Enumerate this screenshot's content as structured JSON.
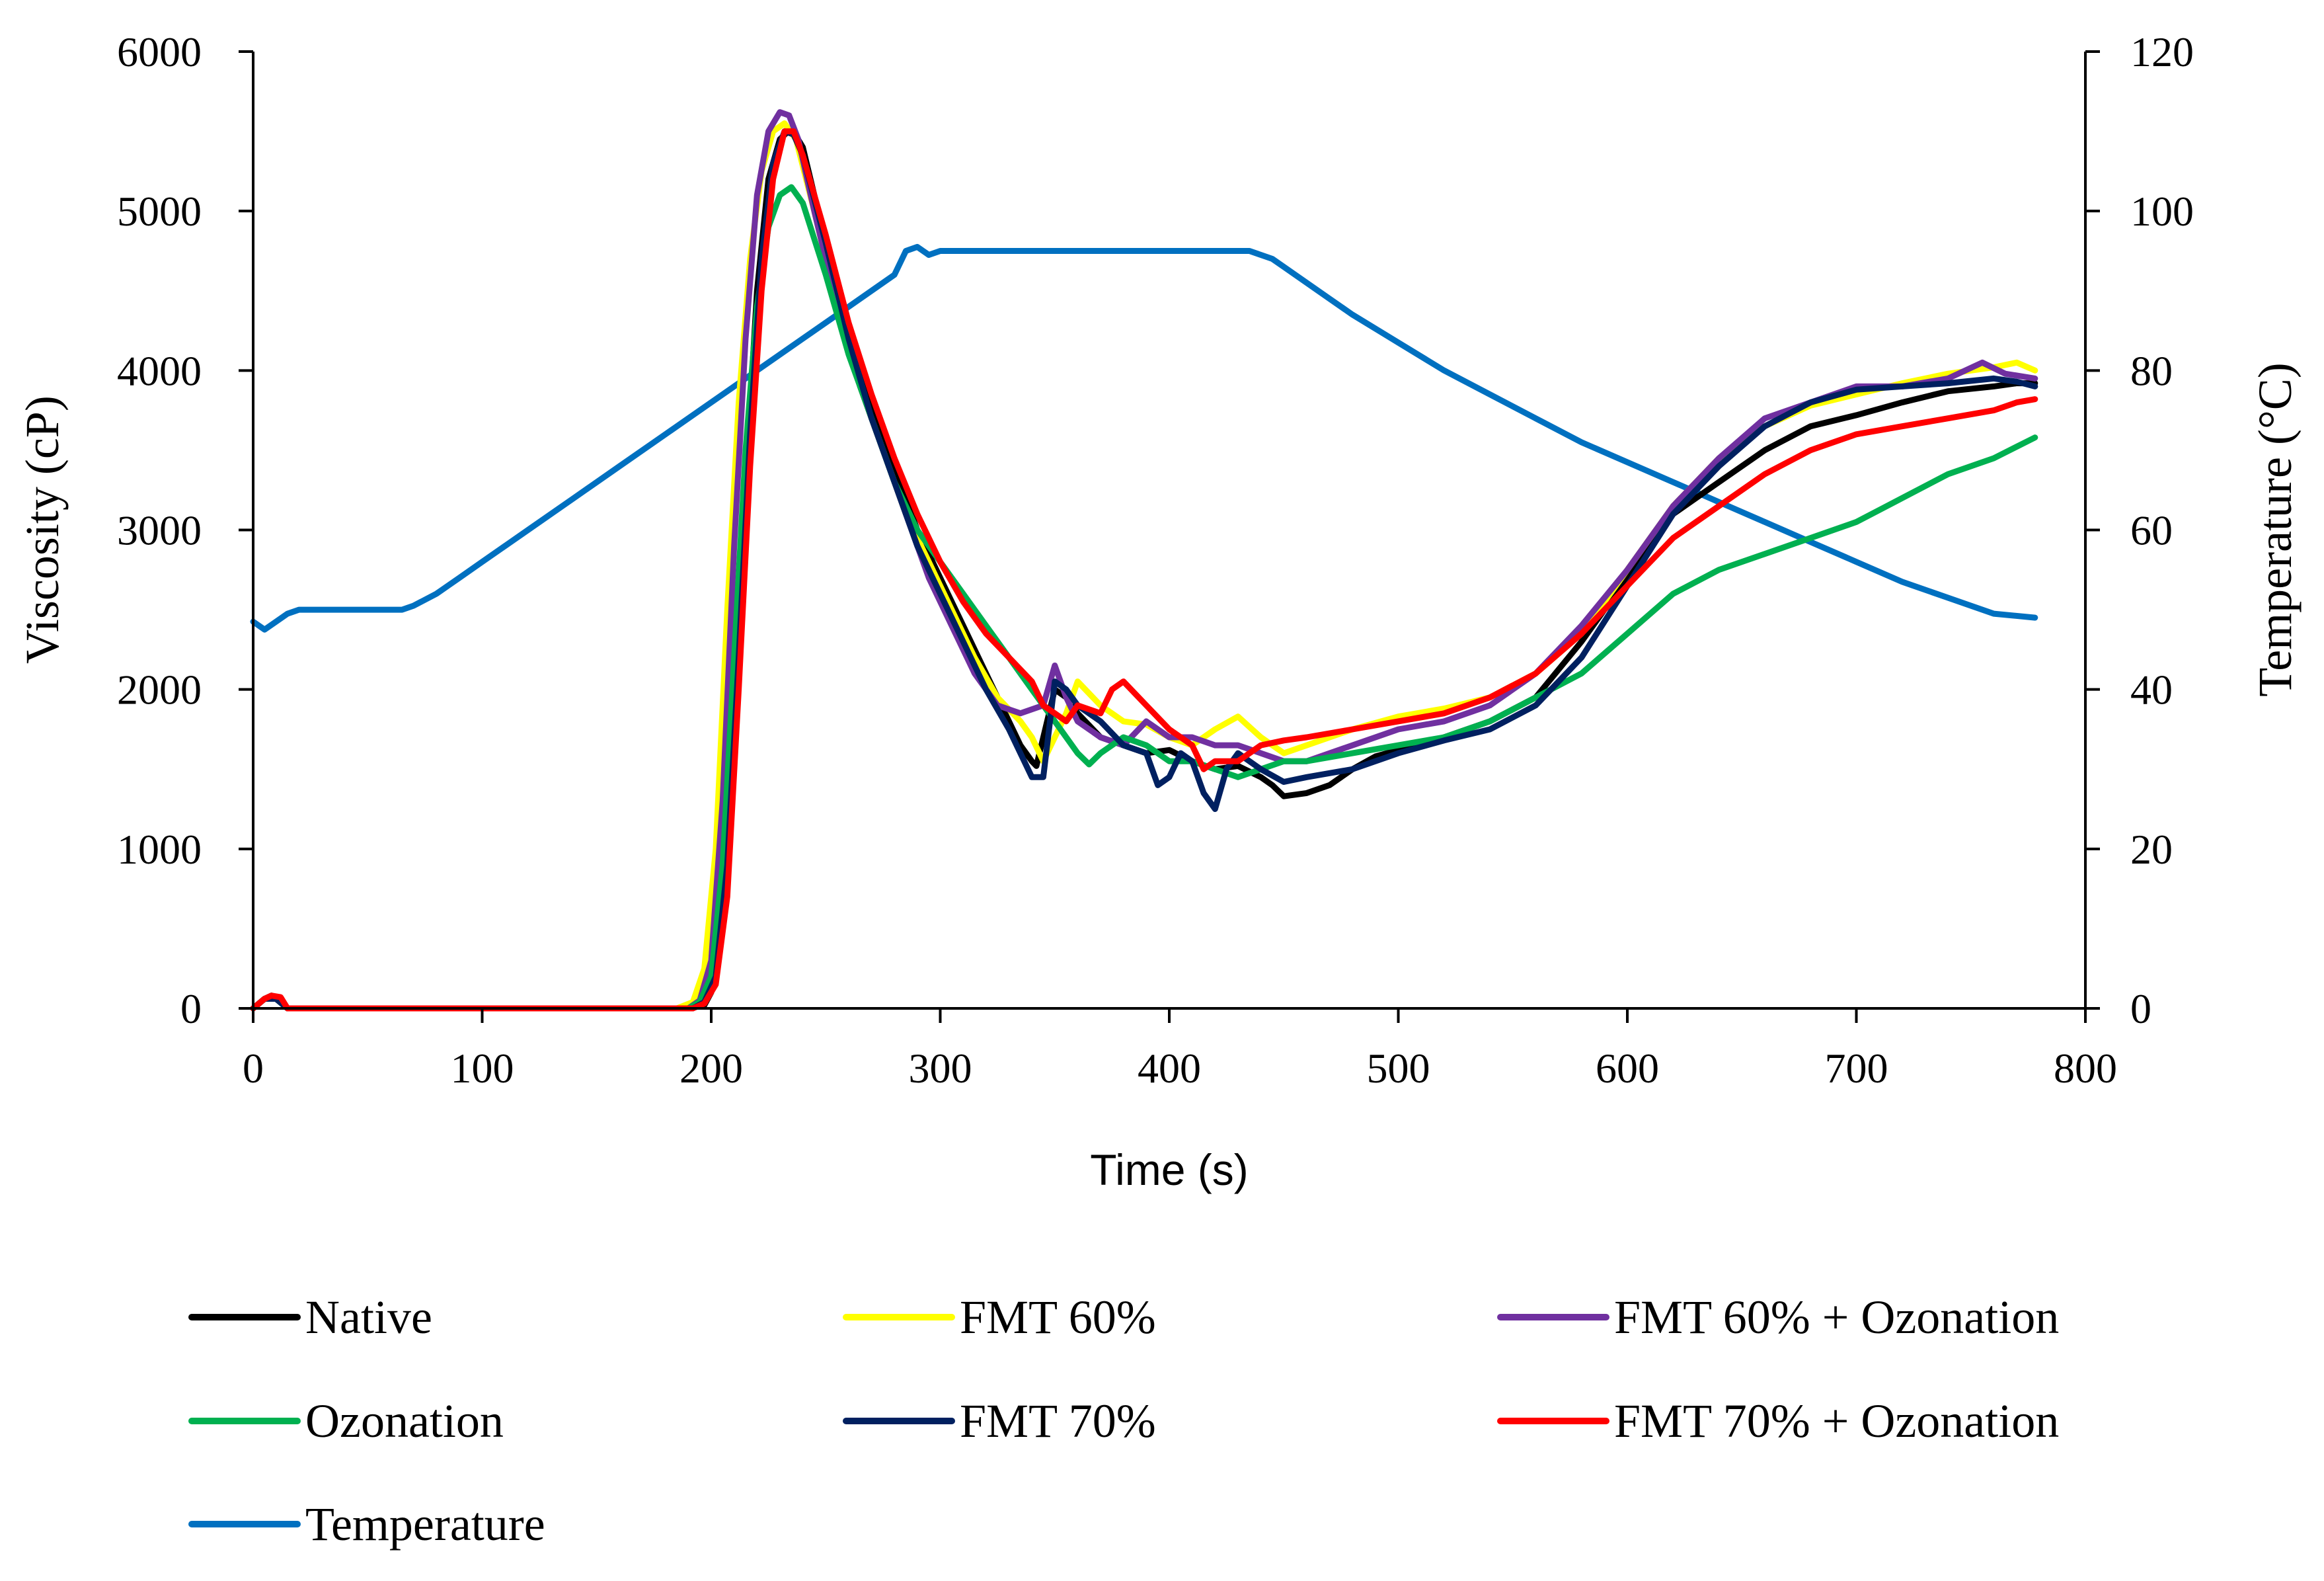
{
  "chart_data": {
    "type": "line",
    "title": "",
    "xlabel": "Time (s)",
    "ylabel": "Viscosity (cP)",
    "y2label": "Temperature (°C)",
    "xlim": [
      0,
      800
    ],
    "ylim": [
      0,
      6000
    ],
    "y2lim": [
      0,
      120
    ],
    "xticks": [
      0,
      100,
      200,
      300,
      400,
      500,
      600,
      700,
      800
    ],
    "yticks": [
      0,
      1000,
      2000,
      3000,
      4000,
      5000,
      6000
    ],
    "y2ticks": [
      0,
      20,
      40,
      60,
      80,
      100,
      120
    ],
    "grid": false,
    "legend_position": "bottom",
    "series": [
      {
        "name": "Native",
        "color": "#000000",
        "axis": "left",
        "x": [
          0,
          5,
          8,
          12,
          15,
          50,
          100,
          150,
          190,
          197,
          200,
          205,
          210,
          215,
          220,
          225,
          230,
          235,
          240,
          250,
          260,
          270,
          280,
          290,
          300,
          310,
          320,
          330,
          335,
          340,
          342,
          345,
          350,
          355,
          360,
          370,
          380,
          390,
          400,
          410,
          420,
          430,
          440,
          445,
          450,
          460,
          470,
          480,
          490,
          500,
          520,
          540,
          560,
          580,
          600,
          620,
          640,
          660,
          680,
          700,
          720,
          740,
          760,
          770,
          778
        ],
        "y": [
          0,
          60,
          80,
          50,
          0,
          0,
          0,
          0,
          0,
          20,
          100,
          700,
          2000,
          3300,
          4500,
          5200,
          5450,
          5520,
          5400,
          4800,
          4200,
          3800,
          3400,
          3000,
          2700,
          2400,
          2100,
          1800,
          1650,
          1550,
          1520,
          1700,
          2000,
          1950,
          1850,
          1700,
          1650,
          1600,
          1620,
          1550,
          1500,
          1520,
          1450,
          1400,
          1330,
          1350,
          1400,
          1500,
          1580,
          1620,
          1700,
          1800,
          1950,
          2300,
          2700,
          3100,
          3300,
          3500,
          3650,
          3720,
          3800,
          3870,
          3900,
          3920,
          3920
        ]
      },
      {
        "name": "FMT 60%",
        "color": "#ffff00",
        "axis": "left",
        "x": [
          0,
          5,
          10,
          15,
          50,
          100,
          150,
          185,
          192,
          197,
          202,
          207,
          212,
          217,
          222,
          227,
          232,
          237,
          245,
          255,
          265,
          275,
          285,
          295,
          305,
          315,
          325,
          335,
          340,
          345,
          350,
          355,
          360,
          370,
          380,
          390,
          400,
          410,
          420,
          430,
          440,
          450,
          460,
          480,
          500,
          520,
          540,
          560,
          580,
          600,
          620,
          640,
          660,
          680,
          700,
          720,
          740,
          760,
          770,
          778
        ],
        "y": [
          0,
          60,
          60,
          0,
          0,
          0,
          0,
          0,
          40,
          250,
          1000,
          2500,
          3800,
          4700,
          5250,
          5500,
          5550,
          5450,
          5000,
          4400,
          3900,
          3500,
          3100,
          2800,
          2500,
          2200,
          1950,
          1800,
          1700,
          1550,
          1700,
          1850,
          2050,
          1900,
          1800,
          1780,
          1700,
          1650,
          1750,
          1830,
          1700,
          1600,
          1650,
          1750,
          1830,
          1880,
          1950,
          2100,
          2350,
          2750,
          3150,
          3450,
          3650,
          3780,
          3850,
          3920,
          3980,
          4020,
          4050,
          4000
        ]
      },
      {
        "name": "FMT 60% + Ozonation",
        "color": "#7030a0",
        "axis": "left",
        "x": [
          0,
          5,
          10,
          15,
          50,
          100,
          150,
          190,
          195,
          200,
          205,
          210,
          215,
          220,
          225,
          230,
          234,
          238,
          245,
          255,
          265,
          275,
          285,
          295,
          305,
          315,
          325,
          335,
          345,
          350,
          355,
          360,
          370,
          380,
          390,
          400,
          410,
          420,
          430,
          440,
          450,
          460,
          480,
          500,
          520,
          540,
          560,
          580,
          600,
          620,
          640,
          660,
          680,
          700,
          720,
          740,
          755,
          765,
          778
        ],
        "y": [
          0,
          60,
          60,
          0,
          0,
          0,
          0,
          0,
          50,
          300,
          1300,
          2900,
          4200,
          5100,
          5500,
          5620,
          5600,
          5450,
          5000,
          4400,
          3900,
          3500,
          3100,
          2700,
          2400,
          2100,
          1900,
          1850,
          1900,
          2150,
          1950,
          1800,
          1700,
          1650,
          1800,
          1700,
          1700,
          1650,
          1650,
          1600,
          1550,
          1550,
          1650,
          1750,
          1800,
          1900,
          2100,
          2400,
          2750,
          3150,
          3450,
          3700,
          3800,
          3900,
          3900,
          3950,
          4050,
          3980,
          3950
        ]
      },
      {
        "name": "Ozonation",
        "color": "#00b050",
        "axis": "left",
        "x": [
          0,
          5,
          10,
          15,
          50,
          100,
          150,
          190,
          195,
          200,
          205,
          210,
          215,
          220,
          225,
          230,
          235,
          240,
          250,
          260,
          270,
          280,
          290,
          300,
          310,
          320,
          330,
          340,
          350,
          360,
          365,
          370,
          380,
          390,
          400,
          410,
          420,
          430,
          440,
          450,
          460,
          480,
          500,
          520,
          540,
          560,
          580,
          600,
          620,
          640,
          660,
          680,
          700,
          720,
          740,
          760,
          778
        ],
        "y": [
          0,
          60,
          60,
          0,
          0,
          0,
          0,
          0,
          40,
          200,
          900,
          2200,
          3500,
          4400,
          4900,
          5100,
          5150,
          5050,
          4600,
          4100,
          3700,
          3300,
          3000,
          2800,
          2600,
          2400,
          2200,
          2000,
          1800,
          1600,
          1530,
          1600,
          1700,
          1650,
          1550,
          1550,
          1500,
          1450,
          1500,
          1550,
          1550,
          1600,
          1650,
          1700,
          1800,
          1950,
          2100,
          2350,
          2600,
          2750,
          2850,
          2950,
          3050,
          3200,
          3350,
          3450,
          3580
        ]
      },
      {
        "name": "FMT 70%",
        "color": "#002060",
        "axis": "left",
        "x": [
          0,
          5,
          10,
          15,
          50,
          100,
          150,
          192,
          197,
          202,
          207,
          212,
          217,
          222,
          227,
          232,
          236,
          240,
          250,
          260,
          270,
          280,
          290,
          300,
          310,
          320,
          330,
          340,
          345,
          350,
          355,
          360,
          370,
          380,
          390,
          395,
          400,
          405,
          410,
          415,
          420,
          425,
          430,
          440,
          450,
          460,
          480,
          500,
          520,
          540,
          560,
          580,
          600,
          620,
          640,
          660,
          680,
          700,
          720,
          740,
          760,
          770,
          778
        ],
        "y": [
          0,
          60,
          60,
          0,
          0,
          0,
          0,
          0,
          40,
          200,
          900,
          2200,
          3600,
          4700,
          5300,
          5500,
          5480,
          5350,
          4800,
          4200,
          3700,
          3300,
          2900,
          2600,
          2300,
          2000,
          1750,
          1450,
          1450,
          2050,
          2000,
          1900,
          1800,
          1650,
          1600,
          1400,
          1450,
          1600,
          1550,
          1350,
          1250,
          1500,
          1600,
          1500,
          1420,
          1450,
          1500,
          1600,
          1680,
          1750,
          1900,
          2200,
          2650,
          3100,
          3400,
          3650,
          3800,
          3880,
          3900,
          3920,
          3950,
          3930,
          3900
        ]
      },
      {
        "name": "FMT 70% + Ozonation",
        "color": "#ff0000",
        "axis": "left",
        "x": [
          0,
          5,
          8,
          12,
          15,
          50,
          100,
          150,
          192,
          197,
          202,
          207,
          212,
          217,
          222,
          227,
          232,
          236,
          240,
          250,
          260,
          270,
          280,
          290,
          300,
          310,
          320,
          330,
          340,
          345,
          350,
          355,
          360,
          370,
          375,
          380,
          390,
          400,
          410,
          415,
          420,
          430,
          440,
          450,
          460,
          480,
          500,
          520,
          540,
          560,
          580,
          600,
          620,
          640,
          660,
          680,
          700,
          720,
          740,
          760,
          770,
          778
        ],
        "y": [
          0,
          60,
          80,
          70,
          0,
          0,
          0,
          0,
          0,
          30,
          150,
          700,
          2000,
          3400,
          4500,
          5200,
          5500,
          5500,
          5350,
          4850,
          4300,
          3850,
          3450,
          3100,
          2800,
          2550,
          2350,
          2200,
          2050,
          1900,
          1850,
          1800,
          1900,
          1850,
          2000,
          2050,
          1900,
          1750,
          1650,
          1500,
          1550,
          1550,
          1650,
          1680,
          1700,
          1750,
          1800,
          1850,
          1950,
          2100,
          2350,
          2650,
          2950,
          3150,
          3350,
          3500,
          3600,
          3650,
          3700,
          3750,
          3800,
          3820
        ]
      },
      {
        "name": "Temperature",
        "color": "#0070c0",
        "axis": "right",
        "x": [
          0,
          5,
          10,
          15,
          20,
          30,
          40,
          50,
          60,
          65,
          70,
          80,
          90,
          100,
          120,
          140,
          160,
          180,
          200,
          220,
          240,
          260,
          280,
          285,
          290,
          295,
          300,
          310,
          320,
          350,
          380,
          400,
          420,
          430,
          435,
          440,
          445,
          450,
          460,
          470,
          480,
          500,
          520,
          540,
          560,
          580,
          600,
          620,
          640,
          660,
          680,
          700,
          720,
          740,
          760,
          778
        ],
        "y": [
          48.5,
          47.5,
          48.5,
          49.5,
          50,
          50,
          50,
          50,
          50,
          50,
          50.5,
          52,
          54,
          56,
          60,
          64,
          68,
          72,
          76,
          80,
          84,
          88,
          92,
          95,
          95.5,
          94.5,
          95,
          95,
          95,
          95,
          95,
          95,
          95,
          95,
          95,
          94.5,
          94,
          93,
          91,
          89,
          87,
          83.5,
          80,
          77,
          74,
          71,
          68.5,
          66,
          63.5,
          61,
          58.5,
          56,
          53.5,
          51.5,
          49.5,
          49
        ]
      }
    ],
    "legend": [
      {
        "label": "Native",
        "color": "#000000"
      },
      {
        "label": "FMT 60%",
        "color": "#ffff00"
      },
      {
        "label": "FMT 60% + Ozonation",
        "color": "#7030a0"
      },
      {
        "label": "Ozonation",
        "color": "#00b050"
      },
      {
        "label": "FMT 70%",
        "color": "#002060"
      },
      {
        "label": "FMT 70% + Ozonation",
        "color": "#ff0000"
      },
      {
        "label": "Temperature",
        "color": "#0070c0"
      }
    ]
  }
}
